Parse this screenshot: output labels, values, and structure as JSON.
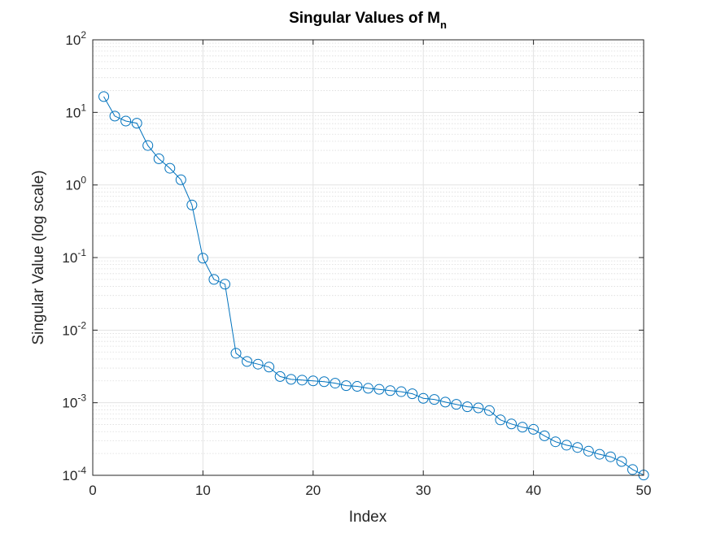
{
  "chart_data": {
    "type": "line",
    "title": "Singular Values of M",
    "title_subscript": "n",
    "xlabel": "Index",
    "ylabel": "Singular Value (log scale)",
    "xlim": [
      0,
      50
    ],
    "ylim": [
      0.0001,
      100
    ],
    "yscale": "log",
    "grid": true,
    "minor_grid": true,
    "x_ticks": [
      0,
      10,
      20,
      30,
      40,
      50
    ],
    "x_tick_labels": [
      "0",
      "10",
      "20",
      "30",
      "40",
      "50"
    ],
    "y_tick_exponents": [
      -4,
      -3,
      -2,
      -1,
      0,
      1,
      2
    ],
    "y_tick_base": "10",
    "y_tick_exponent_labels": [
      "-4",
      "-3",
      "-2",
      "-1",
      "0",
      "1",
      "2"
    ],
    "marker": "circle",
    "series": [
      {
        "color": "#0072BD",
        "x": [
          1,
          2,
          3,
          4,
          5,
          6,
          7,
          8,
          9,
          10,
          11,
          12,
          13,
          14,
          15,
          16,
          17,
          18,
          19,
          20,
          21,
          22,
          23,
          24,
          25,
          26,
          27,
          28,
          29,
          30,
          31,
          32,
          33,
          34,
          35,
          36,
          37,
          38,
          39,
          40,
          41,
          42,
          43,
          44,
          45,
          46,
          47,
          48,
          49,
          50
        ],
        "values": [
          16.5,
          8.9,
          7.6,
          7.1,
          3.5,
          2.3,
          1.7,
          1.18,
          0.53,
          0.098,
          0.05,
          0.043,
          0.0048,
          0.0037,
          0.0034,
          0.0031,
          0.0023,
          0.0021,
          0.00205,
          0.002,
          0.00195,
          0.00186,
          0.00172,
          0.00168,
          0.00158,
          0.00153,
          0.00147,
          0.00142,
          0.00133,
          0.00115,
          0.00111,
          0.00102,
          0.00095,
          0.00088,
          0.00085,
          0.00078,
          0.00058,
          0.00051,
          0.00046,
          0.00043,
          0.00035,
          0.00029,
          0.00026,
          0.000242,
          0.000215,
          0.000195,
          0.00018,
          0.000155,
          0.00012,
          0.000101
        ]
      }
    ]
  }
}
